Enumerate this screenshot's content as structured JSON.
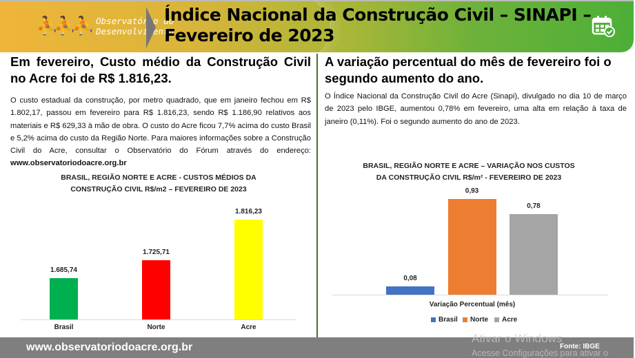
{
  "header": {
    "logo_line1": "Observatório do",
    "logo_line2": "Desenvolvimento",
    "title_line1": "Índice Nacional da Construção Civil – SINAPI –",
    "title_line2": "Fevereiro de 2023"
  },
  "left": {
    "heading": "Em fevereiro, Custo médio da Construção Civil no Acre foi de R$ 1.816,23.",
    "paragraph": "O custo estadual da construção, por metro quadrado, que em janeiro fechou em R$ 1.802,17, passou em fevereiro para R$ 1.816,23, sendo R$ 1.186,90 relativos aos materiais e R$ 629,33 à mão de obra. O custo do Acre ficou 7,7% acima do custo Brasil e 5,2% acima do custo da Região Norte. Para maiores informações sobre a Construção Civil do Acre, consultar o Observatório do Fórum através do endereço: ",
    "link": "www.observatoriodoacre.org.br"
  },
  "right": {
    "heading": "A variação percentual do mês de fevereiro foi o segundo aumento do ano.",
    "paragraph": "O Índice Nacional da Construção Civil do Acre (Sinapi), divulgado no dia 10 de março de 2023 pelo IBGE, aumentou 0,78% em fevereiro, uma alta em relação à taxa de janeiro (0,11%). Foi o segundo aumento do ano de 2023."
  },
  "chart_data": [
    {
      "type": "bar",
      "title_line1": "BRASIL, REGIÃO NORTE E ACRE - CUSTOS MÉDIOS DA",
      "title_line2": "CONSTRUÇÃO CIVIL R$/m2 – FEVEREIRO DE 2023",
      "categories": [
        "Brasil",
        "Norte",
        "Acre"
      ],
      "values": [
        1685.74,
        1725.71,
        1816.23
      ],
      "labels": [
        "1.685,74",
        "1.725,71",
        "1.816,23"
      ],
      "colors": [
        "#00b050",
        "#ff0000",
        "#ffff00"
      ],
      "ylim": [
        1594,
        1830
      ]
    },
    {
      "type": "bar",
      "title_line1": "BRASIL, REGIÃO NORTE E ACRE – VARIAÇÃO NOS CUSTOS",
      "title_line2": "DA CONSTRUÇÃO CIVIL R$/m² - FEVEREIRO DE 2023",
      "xlabel": "Variação Percentual (mês)",
      "categories": [
        "Brasil",
        "Norte",
        "Acre"
      ],
      "values": [
        0.08,
        0.93,
        0.78
      ],
      "labels": [
        "0,08",
        "0,93",
        "0,78"
      ],
      "colors": [
        "#4472c4",
        "#ed7d31",
        "#a5a5a5"
      ],
      "ylim": [
        0,
        1.0
      ],
      "legend": "bottom"
    }
  ],
  "footer": {
    "site": "www.observatoriodoacre.org.br",
    "source": "Fonte: IBGE"
  },
  "watermark": {
    "line1": "Ativar o Windows",
    "line2": "Acesse Configurações para ativar o"
  }
}
